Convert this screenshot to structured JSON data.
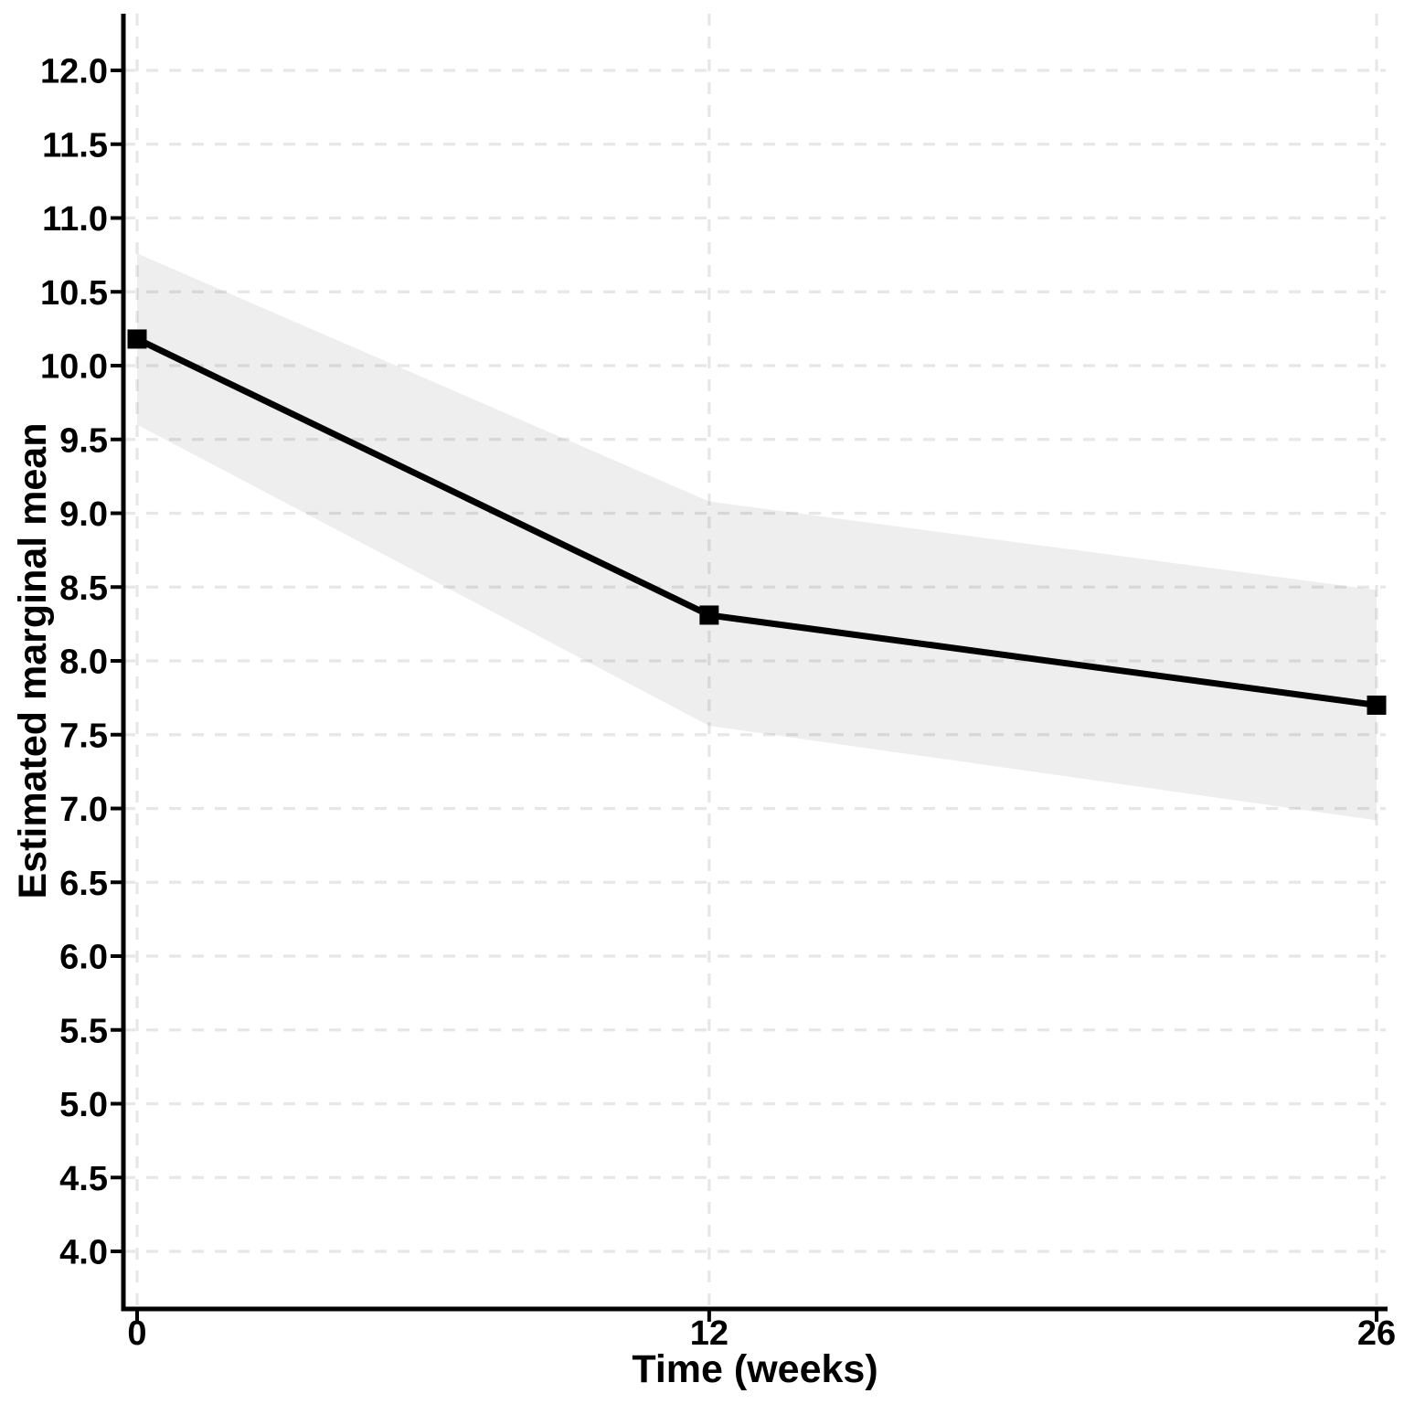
{
  "figure": {
    "description": "Line chart of estimated marginal means at 0, 12 and 26 weeks with a grey confidence ribbon"
  },
  "chart_data": {
    "type": "line",
    "title": "",
    "xlabel": "Time (weeks)",
    "ylabel": "Estimated marginal mean",
    "x": [
      0,
      12,
      26
    ],
    "x_tick_labels": [
      "0",
      "12",
      "26"
    ],
    "y_ticks": [
      4.0,
      4.5,
      5.0,
      5.5,
      6.0,
      6.5,
      7.0,
      7.5,
      8.0,
      8.5,
      9.0,
      9.5,
      10.0,
      10.5,
      11.0,
      11.5,
      12.0
    ],
    "y_tick_labels": [
      "4.0",
      "4.5",
      "5.0",
      "5.5",
      "6.0",
      "6.5",
      "7.0",
      "7.5",
      "8.0",
      "8.5",
      "9.0",
      "9.5",
      "10.0",
      "10.5",
      "11.0",
      "11.5",
      "12.0"
    ],
    "ylim": [
      3.6,
      12.4
    ],
    "xlim": [
      -0.3,
      26.3
    ],
    "grid": "dashed-major",
    "legend_position": "none",
    "series": [
      {
        "name": "Estimated marginal mean",
        "marker": "filled-square",
        "values": [
          10.18,
          8.31,
          7.7
        ],
        "ci_lower": [
          9.6,
          7.56,
          6.92
        ],
        "ci_upper": [
          10.76,
          9.08,
          8.48
        ]
      }
    ],
    "colors": {
      "line": "#000000",
      "marker": "#000000",
      "ribbon": "rgba(0,0,0,0.068)",
      "gridline": "#e7e7e7",
      "axis": "#000000",
      "text": "#000000",
      "background": "#ffffff"
    }
  }
}
